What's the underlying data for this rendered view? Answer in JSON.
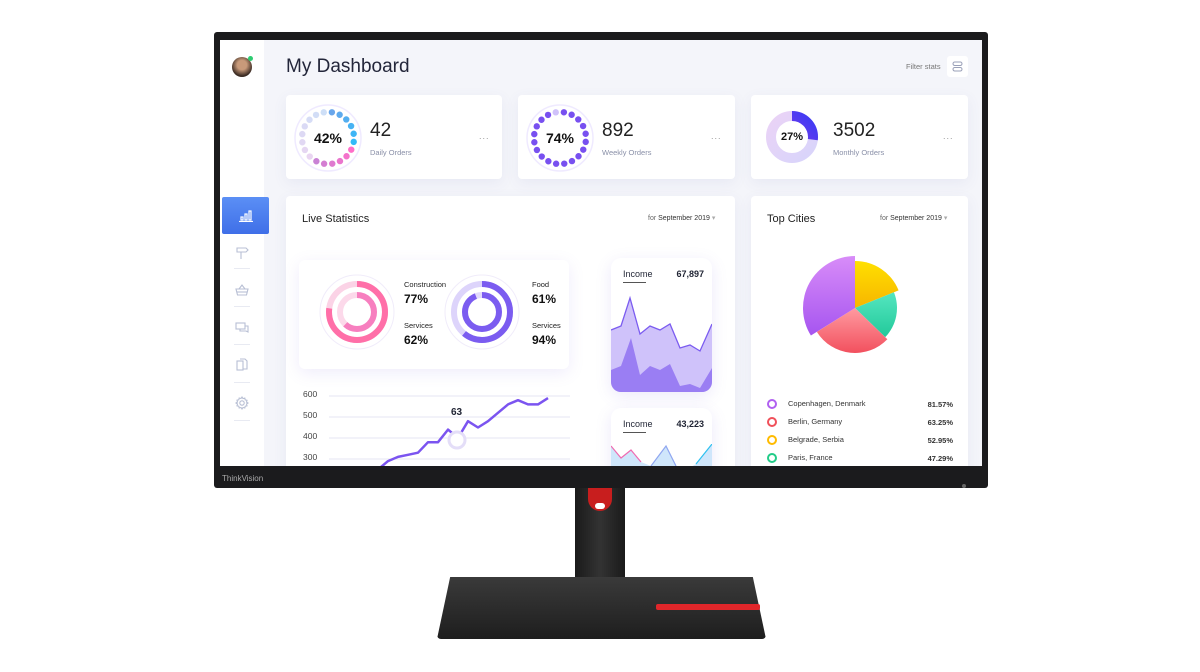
{
  "header": {
    "title": "My Dashboard",
    "filter_label": "Filter stats",
    "filter_icon": "toggles-icon"
  },
  "sidebar": {
    "items": [
      {
        "icon": "bar-chart-icon",
        "active": true
      },
      {
        "icon": "signpost-icon"
      },
      {
        "icon": "basket-icon"
      },
      {
        "icon": "chat-icon"
      },
      {
        "icon": "documents-icon"
      },
      {
        "icon": "gear-icon"
      }
    ]
  },
  "stats": [
    {
      "percent": "42%",
      "percent_value": 42,
      "value": "42",
      "label": "Daily Orders",
      "menu": "..."
    },
    {
      "percent": "74%",
      "percent_value": 74,
      "value": "892",
      "label": "Weekly Orders",
      "menu": "..."
    },
    {
      "percent": "27%",
      "percent_value": 27,
      "value": "3502",
      "label": "Monthly Orders",
      "menu": "..."
    }
  ],
  "live": {
    "title": "Live Statistics",
    "for": "for",
    "period": "September 2019",
    "rings": [
      {
        "label_a": "Construction",
        "value_a": "77%",
        "label_b": "Services",
        "value_b": "62%"
      },
      {
        "label_a": "Food",
        "value_a": "61%",
        "label_b": "Services",
        "value_b": "94%"
      }
    ],
    "line": {
      "yticks": [
        "600",
        "500",
        "400",
        "300"
      ],
      "marker_label": "63",
      "values": [
        250,
        290,
        310,
        320,
        330,
        380,
        380,
        440,
        400,
        480,
        450,
        480,
        520,
        560,
        580,
        560,
        560,
        590
      ]
    },
    "income": [
      {
        "label": "Income",
        "value": "67,897"
      },
      {
        "label": "Income",
        "value": "43,223"
      }
    ]
  },
  "cities": {
    "title": "Top Cities",
    "for": "for",
    "period": "September 2019",
    "items": [
      {
        "name": "Copenhagen, Denmark",
        "value": "81.57%",
        "color": "#b060f0"
      },
      {
        "name": "Berlin, Germany",
        "value": "63.25%",
        "color": "#f0505a"
      },
      {
        "name": "Belgrade, Serbia",
        "value": "52.95%",
        "color": "#ffbb00"
      },
      {
        "name": "Paris, France",
        "value": "47.29%",
        "color": "#22cc88"
      }
    ]
  },
  "brand": "ThinkVision"
}
